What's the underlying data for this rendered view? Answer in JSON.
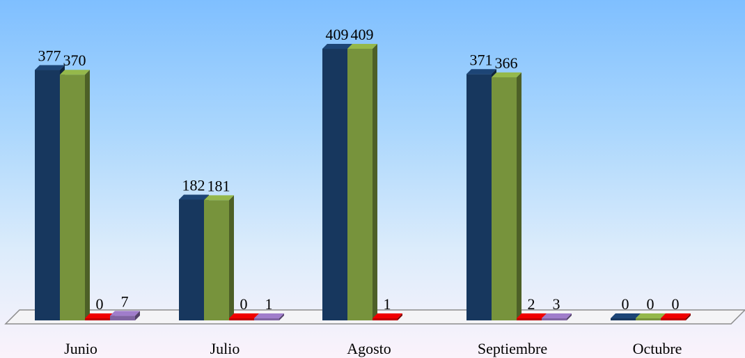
{
  "chart_data": {
    "type": "bar",
    "style": "3d-clustered-column",
    "categories": [
      "Junio",
      "Julio",
      "Agosto",
      "Septiembre",
      "Octubre"
    ],
    "series": [
      {
        "values": [
          377,
          182,
          409,
          371,
          0
        ],
        "color": "#17375e"
      },
      {
        "values": [
          370,
          181,
          409,
          366,
          0
        ],
        "color": "#77933c"
      },
      {
        "values": [
          0,
          0,
          1,
          2,
          0
        ],
        "color": "#c00000"
      },
      {
        "values": [
          7,
          1,
          null,
          3,
          null
        ],
        "color": "#8064a2"
      }
    ],
    "ylim": [
      0,
      409
    ],
    "grid": false,
    "legend": "none"
  }
}
